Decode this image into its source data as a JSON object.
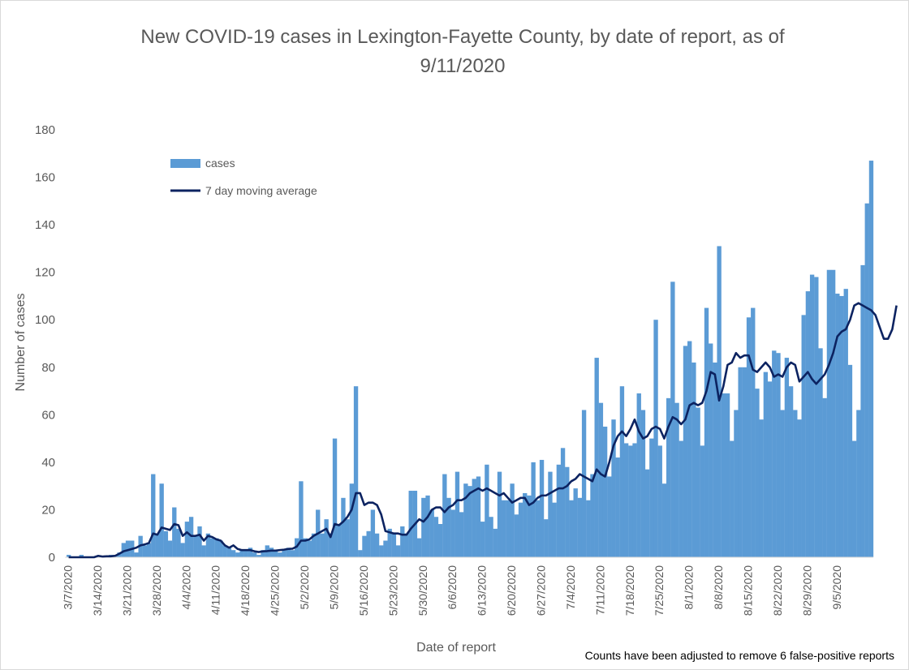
{
  "chart_data": {
    "type": "bar",
    "title": "New COVID-19 cases in Lexington-Fayette County, by date of report, as of 9/11/2020",
    "xlabel": "Date of report",
    "ylabel": "Number of cases",
    "ylim": [
      0,
      180
    ],
    "yticks": [
      0,
      20,
      40,
      60,
      80,
      100,
      120,
      140,
      160,
      180
    ],
    "xticks": [
      "3/7/2020",
      "3/14/2020",
      "3/21/2020",
      "3/28/2020",
      "4/4/2020",
      "4/11/2020",
      "4/18/2020",
      "4/25/2020",
      "5/2/2020",
      "5/9/2020",
      "5/16/2020",
      "5/23/2020",
      "5/30/2020",
      "6/6/2020",
      "6/13/2020",
      "6/20/2020",
      "6/27/2020",
      "7/4/2020",
      "7/11/2020",
      "7/18/2020",
      "7/25/2020",
      "8/1/2020",
      "8/8/2020",
      "8/15/2020",
      "8/22/2020",
      "8/29/2020",
      "9/5/2020"
    ],
    "start_date": "3/7/2020",
    "end_date": "9/11/2020",
    "legend": {
      "placement": "top-left",
      "entries": [
        "cases",
        "7 day moving average"
      ]
    },
    "grid": false,
    "colors": {
      "bars": "#5b9bd5",
      "line": "#0c2361"
    },
    "footnote": "Counts have been adjusted to remove 6 false-positive reports",
    "series": [
      {
        "name": "cases",
        "type": "bar",
        "values": [
          1,
          0,
          0,
          1,
          0,
          0,
          0,
          0,
          0,
          0,
          1,
          1,
          2,
          6,
          7,
          7,
          2,
          9,
          5,
          6,
          35,
          10,
          31,
          11,
          7,
          21,
          12,
          6,
          15,
          17,
          9,
          13,
          5,
          10,
          8,
          8,
          7,
          5,
          4,
          3,
          2,
          3,
          3,
          4,
          2,
          1,
          3,
          5,
          4,
          3,
          2,
          3,
          4,
          3,
          8,
          32,
          8,
          7,
          10,
          20,
          10,
          16,
          10,
          50,
          14,
          25,
          16,
          31,
          72,
          3,
          9,
          11,
          20,
          10,
          5,
          7,
          12,
          10,
          5,
          13,
          10,
          28,
          28,
          8,
          25,
          26,
          20,
          17,
          14,
          35,
          25,
          20,
          36,
          19,
          31,
          30,
          33,
          34,
          15,
          39,
          17,
          12,
          36,
          24,
          24,
          31,
          18,
          23,
          27,
          26,
          40,
          24,
          41,
          16,
          36,
          23,
          39,
          46,
          38,
          24,
          29,
          25,
          62,
          24,
          35,
          84,
          65,
          55,
          34,
          58,
          42,
          72,
          48,
          47,
          48,
          69,
          62,
          37,
          50,
          100,
          47,
          31,
          67,
          116,
          65,
          49,
          89,
          91,
          82,
          63,
          47,
          105,
          90,
          82,
          131,
          69,
          69,
          49,
          62,
          80,
          80,
          101,
          105,
          71,
          58,
          78,
          74,
          87,
          86,
          62,
          84,
          72,
          62,
          58,
          102,
          112,
          119,
          118,
          88,
          67,
          121,
          121,
          111,
          110,
          113,
          81,
          49,
          62,
          123,
          149,
          167
        ]
      },
      {
        "name": "7 day moving average",
        "type": "line",
        "values": [
          0,
          0,
          0,
          0,
          0,
          0,
          0,
          0.6,
          0.3,
          0.4,
          0.4,
          0.6,
          1.5,
          2.5,
          3,
          3.5,
          4,
          5,
          5.4,
          6,
          10,
          9.5,
          12.5,
          12,
          11.5,
          14,
          13.5,
          9,
          10.5,
          9,
          9,
          9.5,
          7,
          9,
          8.5,
          7.5,
          7,
          5,
          4,
          5,
          3.5,
          3,
          3,
          3,
          2.5,
          2.2,
          2.5,
          2.6,
          2.8,
          2.8,
          3,
          3.2,
          3.5,
          3.6,
          4.5,
          7,
          7,
          7.5,
          9,
          10,
          11,
          12,
          8.5,
          14,
          13.5,
          15,
          17,
          20,
          27,
          27,
          22,
          23,
          23,
          22,
          18,
          11,
          10.5,
          10,
          10,
          9.5,
          9.5,
          12,
          14,
          16,
          15,
          17,
          20,
          21,
          21,
          19,
          21,
          22,
          24,
          24,
          25,
          27,
          28,
          29,
          28,
          29,
          28,
          27,
          26,
          27,
          25,
          23,
          24,
          25,
          25,
          22,
          23,
          25,
          26,
          26,
          27,
          28,
          29,
          29,
          30,
          32,
          33,
          35,
          34,
          33,
          32,
          37,
          35,
          34,
          40,
          47,
          51,
          53,
          51,
          54,
          58,
          53,
          50,
          51,
          54,
          55,
          54,
          50,
          55,
          59,
          58,
          56,
          58,
          64,
          65,
          64,
          65,
          70,
          78,
          77,
          66,
          72,
          81,
          82,
          86,
          84,
          85,
          85,
          79,
          78,
          80,
          82,
          80,
          76,
          77,
          76,
          80,
          82,
          81,
          74,
          76,
          78,
          75,
          73,
          75,
          77,
          81,
          86,
          93,
          95,
          96,
          100,
          106,
          107,
          106,
          105,
          104,
          102,
          97,
          92,
          92,
          96,
          106
        ]
      }
    ]
  }
}
